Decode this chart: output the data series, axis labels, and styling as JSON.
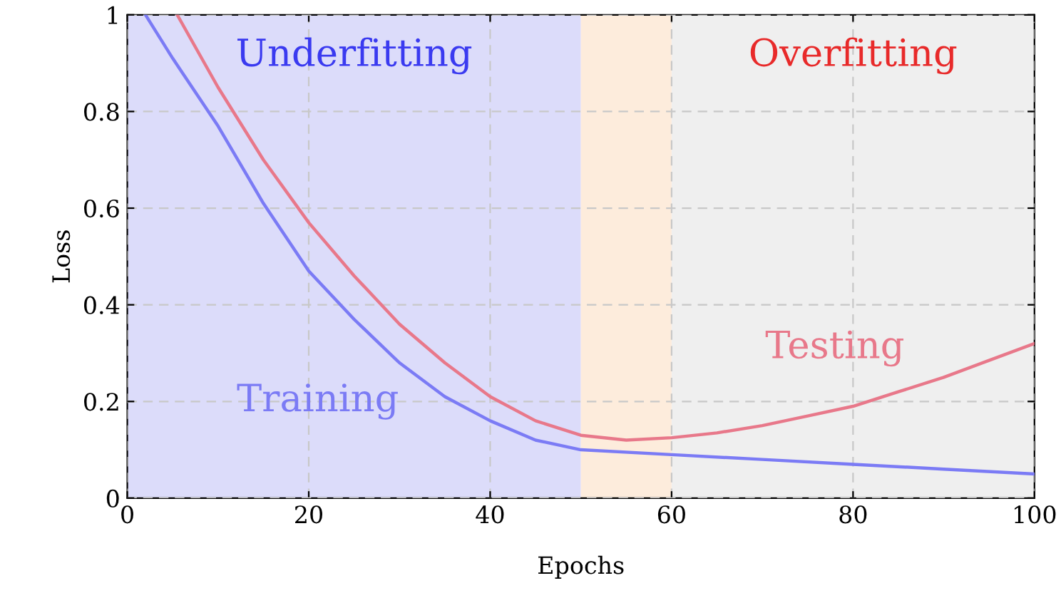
{
  "chart_data": {
    "type": "line",
    "xlabel": "Epochs",
    "ylabel": "Loss",
    "xlim": [
      0,
      100
    ],
    "ylim": [
      0,
      1
    ],
    "xticks": [
      0,
      20,
      40,
      60,
      80,
      100
    ],
    "yticks": [
      0,
      0.2,
      0.4,
      0.6,
      0.8,
      1
    ],
    "grid": true,
    "line_style": "solid",
    "marker": "none",
    "bands": [
      {
        "axis": "x",
        "from": 0,
        "to": 50,
        "label": "Underfitting",
        "color": "#dcdcfa"
      },
      {
        "axis": "x",
        "from": 50,
        "to": 60,
        "label": null,
        "color": "#fdecdc"
      },
      {
        "axis": "x",
        "from": 60,
        "to": 100,
        "label": "Overfitting",
        "color": "#efefef"
      }
    ],
    "series": [
      {
        "name": "Training",
        "color": "#7b7bf5",
        "x": [
          2,
          5,
          10,
          15,
          20,
          25,
          30,
          35,
          40,
          45,
          50,
          60,
          70,
          80,
          90,
          100
        ],
        "values": [
          1.0,
          0.91,
          0.77,
          0.61,
          0.47,
          0.37,
          0.28,
          0.21,
          0.16,
          0.12,
          0.1,
          0.09,
          0.08,
          0.07,
          0.06,
          0.05
        ]
      },
      {
        "name": "Testing",
        "color": "#e8788a",
        "x": [
          5.5,
          10,
          15,
          20,
          25,
          30,
          35,
          40,
          45,
          50,
          55,
          60,
          65,
          70,
          75,
          80,
          85,
          90,
          95,
          100
        ],
        "values": [
          1.0,
          0.85,
          0.7,
          0.57,
          0.46,
          0.36,
          0.28,
          0.21,
          0.16,
          0.13,
          0.12,
          0.125,
          0.135,
          0.15,
          0.17,
          0.19,
          0.22,
          0.25,
          0.285,
          0.32
        ]
      }
    ]
  }
}
